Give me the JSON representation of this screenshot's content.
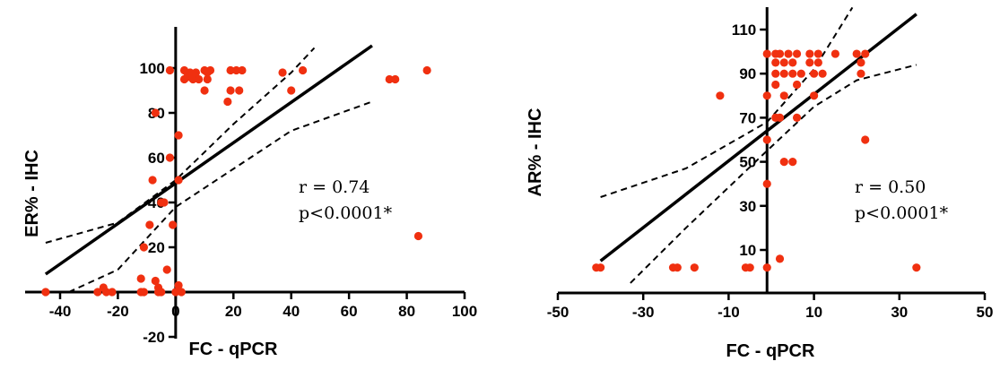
{
  "chart_data": [
    {
      "type": "scatter",
      "xlabel": "FC - qPCR",
      "ylabel": "ER% - IHC",
      "xlim": [
        -45,
        100
      ],
      "ylim": [
        -20,
        110
      ],
      "xticks": [
        -40,
        -20,
        0,
        20,
        40,
        60,
        80,
        100
      ],
      "xtick_labels": [
        "-40",
        "-20",
        "0",
        "20",
        "40",
        "60",
        "80",
        "100"
      ],
      "yticks": [
        -20,
        0,
        20,
        40,
        60,
        80,
        100
      ],
      "ytick_labels": [
        "-20",
        "",
        "20",
        "40",
        "60",
        "80",
        "100"
      ],
      "annotations": [
        "r = 0.74",
        "p<0.0001*"
      ],
      "point_color": "#f03010",
      "points": [
        [
          -45,
          0
        ],
        [
          -27,
          0
        ],
        [
          -25,
          2
        ],
        [
          -24,
          0
        ],
        [
          -22,
          0
        ],
        [
          -12,
          6
        ],
        [
          -12,
          0
        ],
        [
          -11,
          0
        ],
        [
          -11,
          20
        ],
        [
          -9,
          30
        ],
        [
          -8,
          50
        ],
        [
          -7,
          80
        ],
        [
          -7,
          5
        ],
        [
          -6,
          0
        ],
        [
          -6,
          2
        ],
        [
          -5,
          0
        ],
        [
          -5,
          40
        ],
        [
          -4,
          40
        ],
        [
          -3,
          10
        ],
        [
          -2,
          99
        ],
        [
          -2,
          60
        ],
        [
          -1,
          30
        ],
        [
          0,
          0
        ],
        [
          1,
          3
        ],
        [
          1,
          70
        ],
        [
          1,
          50
        ],
        [
          2,
          0
        ],
        [
          3,
          95
        ],
        [
          3,
          99
        ],
        [
          4,
          96
        ],
        [
          5,
          98
        ],
        [
          6,
          95
        ],
        [
          7,
          98
        ],
        [
          8,
          95
        ],
        [
          10,
          99
        ],
        [
          10,
          90
        ],
        [
          11,
          98
        ],
        [
          11,
          95
        ],
        [
          12,
          99
        ],
        [
          18,
          85
        ],
        [
          19,
          99
        ],
        [
          19,
          90
        ],
        [
          21,
          99
        ],
        [
          22,
          90
        ],
        [
          23,
          99
        ],
        [
          37,
          98
        ],
        [
          40,
          90
        ],
        [
          44,
          99
        ],
        [
          74,
          95
        ],
        [
          76,
          95
        ],
        [
          84,
          25
        ],
        [
          87,
          99
        ]
      ],
      "fit": [
        [
          -45,
          8
        ],
        [
          68,
          110
        ]
      ],
      "ci_upper": [
        [
          -45,
          22
        ],
        [
          -20,
          31
        ],
        [
          0,
          50
        ],
        [
          20,
          75
        ],
        [
          40,
          98
        ],
        [
          48,
          109
        ]
      ],
      "ci_lower": [
        [
          -37,
          0
        ],
        [
          -20,
          10
        ],
        [
          0,
          38
        ],
        [
          20,
          55
        ],
        [
          40,
          72
        ],
        [
          68,
          85
        ]
      ]
    },
    {
      "type": "scatter",
      "xlabel": "FC - qPCR",
      "ylabel": "AR% - IHC",
      "xlim": [
        -50,
        50
      ],
      "ylim": [
        0,
        120
      ],
      "xticks": [
        -50,
        -30,
        -10,
        10,
        30,
        50
      ],
      "xtick_labels": [
        "-50",
        "-30",
        "-10",
        "10",
        "30",
        "50"
      ],
      "yticks": [
        10,
        30,
        50,
        70,
        90,
        110
      ],
      "ytick_labels": [
        "10",
        "30",
        "50",
        "70",
        "90",
        "110"
      ],
      "annotations": [
        "r = 0.50",
        "p<0.0001*"
      ],
      "point_color": "#f03010",
      "points": [
        [
          -41,
          2
        ],
        [
          -40,
          2
        ],
        [
          -23,
          2
        ],
        [
          -22,
          2
        ],
        [
          -18,
          2
        ],
        [
          -12,
          80
        ],
        [
          -6,
          2
        ],
        [
          -5,
          2
        ],
        [
          -1,
          2
        ],
        [
          -1,
          40
        ],
        [
          -1,
          60
        ],
        [
          -1,
          80
        ],
        [
          -1,
          99
        ],
        [
          1,
          70
        ],
        [
          1,
          85
        ],
        [
          1,
          99
        ],
        [
          1,
          95
        ],
        [
          1,
          90
        ],
        [
          2,
          6
        ],
        [
          2,
          70
        ],
        [
          2,
          99
        ],
        [
          3,
          95
        ],
        [
          3,
          50
        ],
        [
          3,
          90
        ],
        [
          3,
          80
        ],
        [
          4,
          99
        ],
        [
          5,
          95
        ],
        [
          5,
          50
        ],
        [
          5,
          90
        ],
        [
          6,
          70
        ],
        [
          6,
          85
        ],
        [
          6,
          99
        ],
        [
          7,
          90
        ],
        [
          9,
          99
        ],
        [
          9,
          95
        ],
        [
          10,
          80
        ],
        [
          10,
          90
        ],
        [
          11,
          99
        ],
        [
          11,
          95
        ],
        [
          12,
          90
        ],
        [
          15,
          99
        ],
        [
          20,
          99
        ],
        [
          21,
          95
        ],
        [
          21,
          90
        ],
        [
          22,
          60
        ],
        [
          22,
          99
        ],
        [
          34,
          2
        ]
      ],
      "fit": [
        [
          -40,
          5
        ],
        [
          34,
          117
        ]
      ],
      "ci_upper": [
        [
          -40,
          34
        ],
        [
          -20,
          47
        ],
        [
          -1,
          68
        ],
        [
          10,
          92
        ],
        [
          19,
          120
        ]
      ],
      "ci_lower": [
        [
          -33,
          -5
        ],
        [
          -20,
          20
        ],
        [
          -1,
          55
        ],
        [
          10,
          75
        ],
        [
          20,
          87
        ],
        [
          34,
          94
        ]
      ]
    }
  ]
}
